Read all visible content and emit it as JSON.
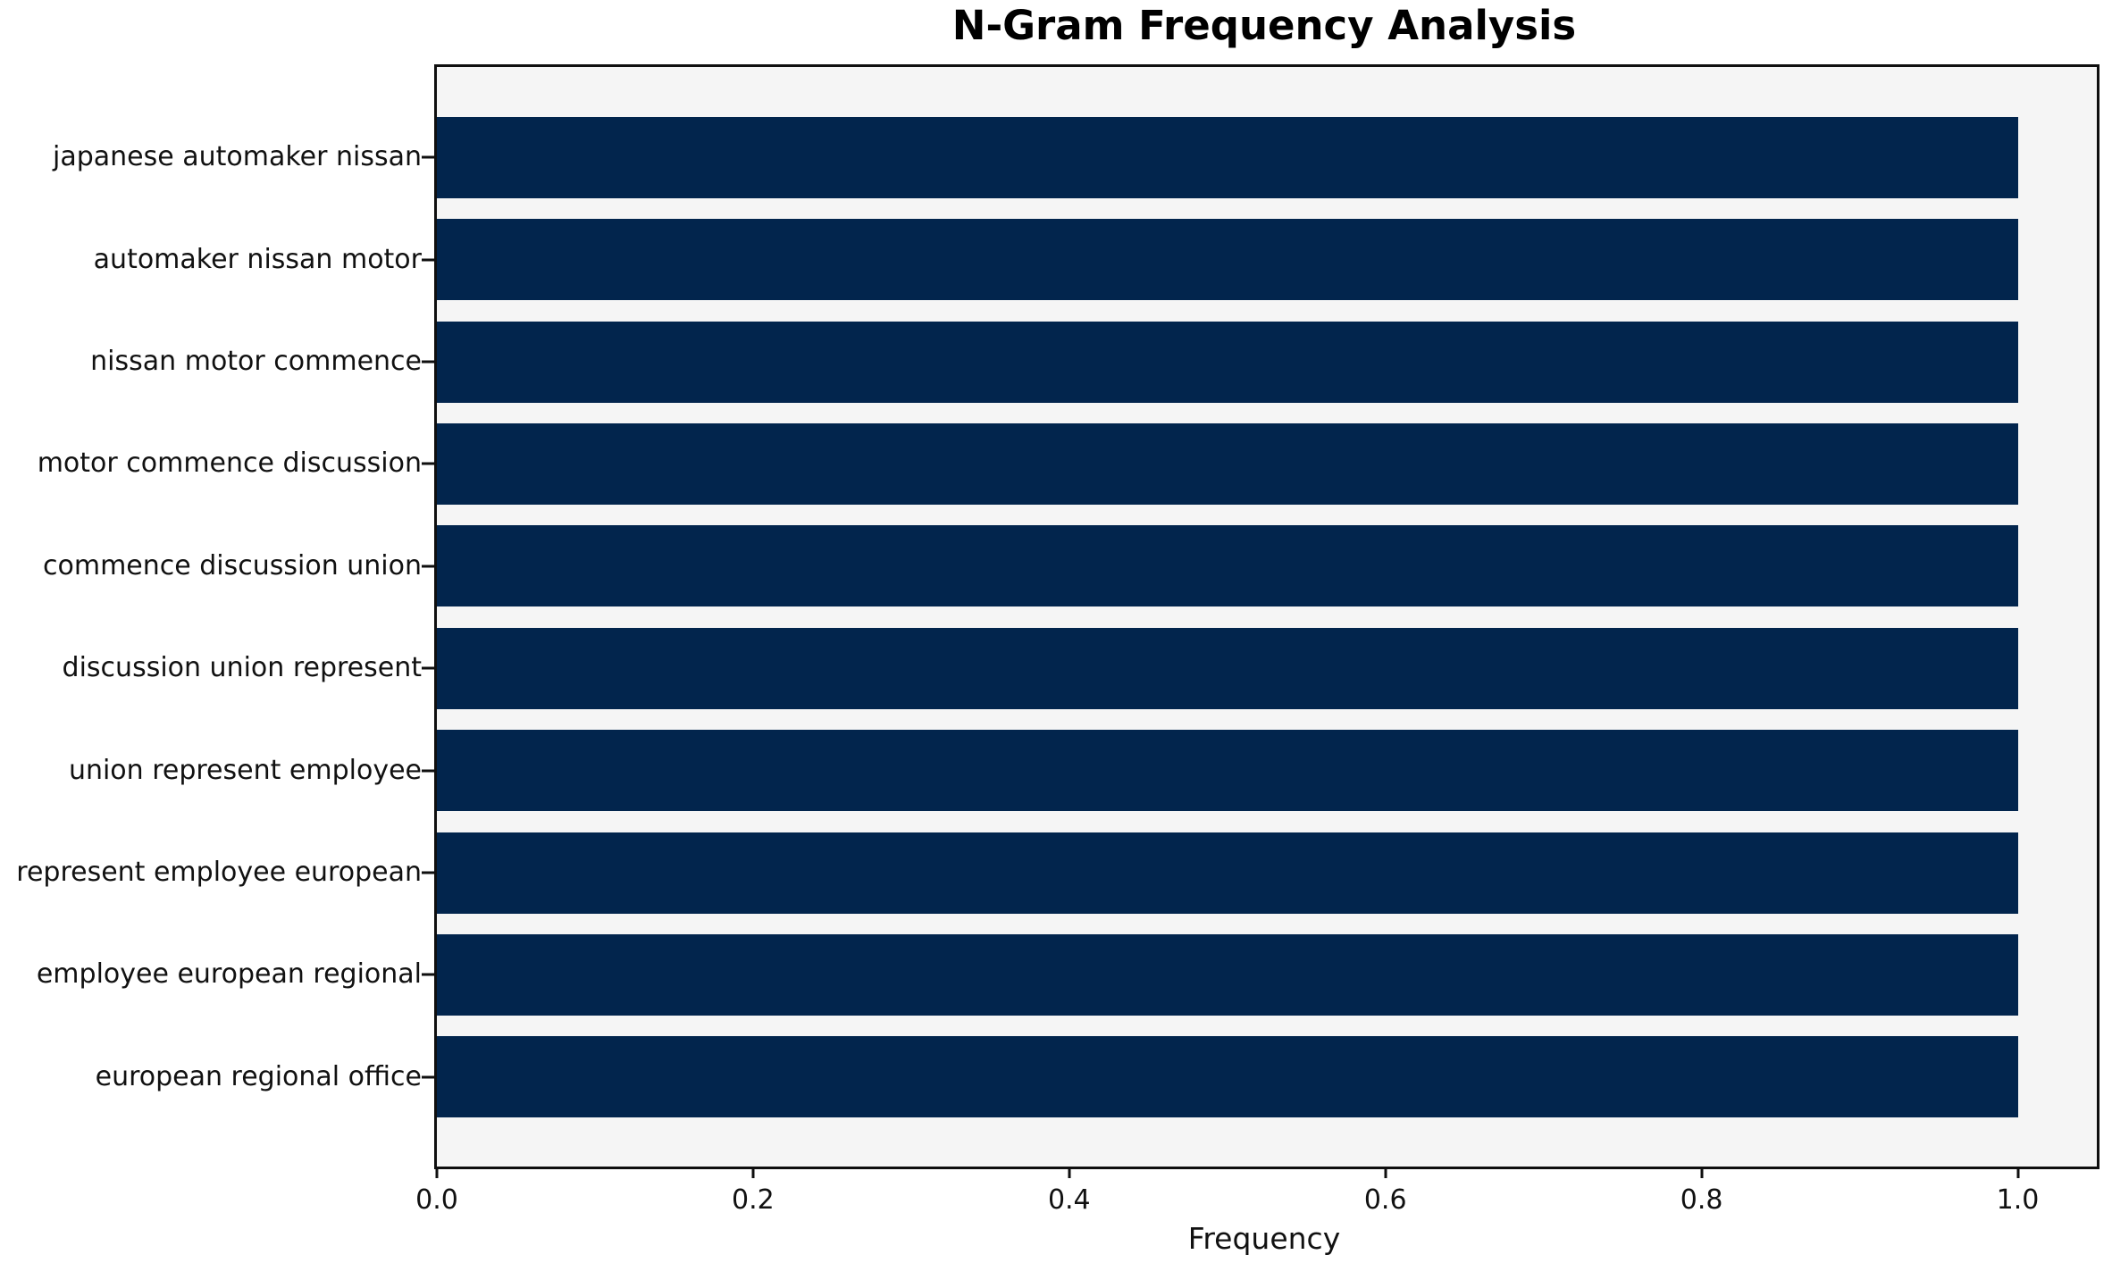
{
  "chart_data": {
    "type": "bar",
    "orientation": "horizontal",
    "title": "N-Gram Frequency Analysis",
    "xlabel": "Frequency",
    "ylabel": "",
    "categories": [
      "japanese automaker nissan",
      "automaker nissan motor",
      "nissan motor commence",
      "motor commence discussion",
      "commence discussion union",
      "discussion union represent",
      "union represent employee",
      "represent employee european",
      "employee european regional",
      "european regional office"
    ],
    "values": [
      1.0,
      1.0,
      1.0,
      1.0,
      1.0,
      1.0,
      1.0,
      1.0,
      1.0,
      1.0
    ],
    "x_ticks": [
      0.0,
      0.2,
      0.4,
      0.6,
      0.8,
      1.0
    ],
    "x_tick_labels": [
      "0.0",
      "0.2",
      "0.4",
      "0.6",
      "0.8",
      "1.0"
    ],
    "xlim": [
      0,
      1.05
    ],
    "grid": false,
    "legend": "none",
    "colors": {
      "bar": "#02254d",
      "plot_background": "#f5f5f5",
      "figure_background": "#ffffff",
      "spine": "#0f0f0f",
      "text": "#111111"
    }
  }
}
